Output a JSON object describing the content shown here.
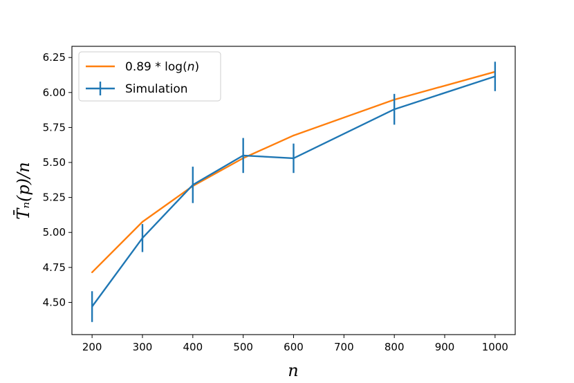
{
  "chart_data": {
    "type": "line",
    "title": "",
    "xlabel": "n",
    "ylabel": "T̄ₙ(p)/n",
    "xlim": [
      160,
      1040
    ],
    "ylim": [
      4.27,
      6.33
    ],
    "xticks": [
      200,
      300,
      400,
      500,
      600,
      700,
      800,
      900,
      1000
    ],
    "xtick_labels": [
      "200",
      "300",
      "400",
      "500",
      "600",
      "700",
      "800",
      "900",
      "1000"
    ],
    "yticks": [
      4.5,
      4.75,
      5.0,
      5.25,
      5.5,
      5.75,
      6.0,
      6.25
    ],
    "ytick_labels": [
      "4.50",
      "4.75",
      "5.00",
      "5.25",
      "5.50",
      "5.75",
      "6.00",
      "6.25"
    ],
    "grid": false,
    "legend_position": "upper-left",
    "series": [
      {
        "name": "0.89 * log(n)",
        "color": "#ff7f0e",
        "x": [
          200,
          300,
          400,
          500,
          600,
          800,
          1000
        ],
        "y": [
          4.715,
          5.076,
          5.332,
          5.531,
          5.693,
          5.949,
          6.148
        ]
      },
      {
        "name": "Simulation",
        "color": "#1f77b4",
        "x": [
          200,
          300,
          400,
          500,
          600,
          800,
          1000
        ],
        "y": [
          4.47,
          4.96,
          5.34,
          5.55,
          5.53,
          5.88,
          6.115
        ],
        "yerr": [
          0.11,
          0.1,
          0.13,
          0.125,
          0.105,
          0.11,
          0.105
        ]
      }
    ]
  },
  "legend": {
    "entry_1": {
      "prefix": "0.89 * log(",
      "var": "n",
      "suffix": ")"
    },
    "entry_2": "Simulation"
  }
}
